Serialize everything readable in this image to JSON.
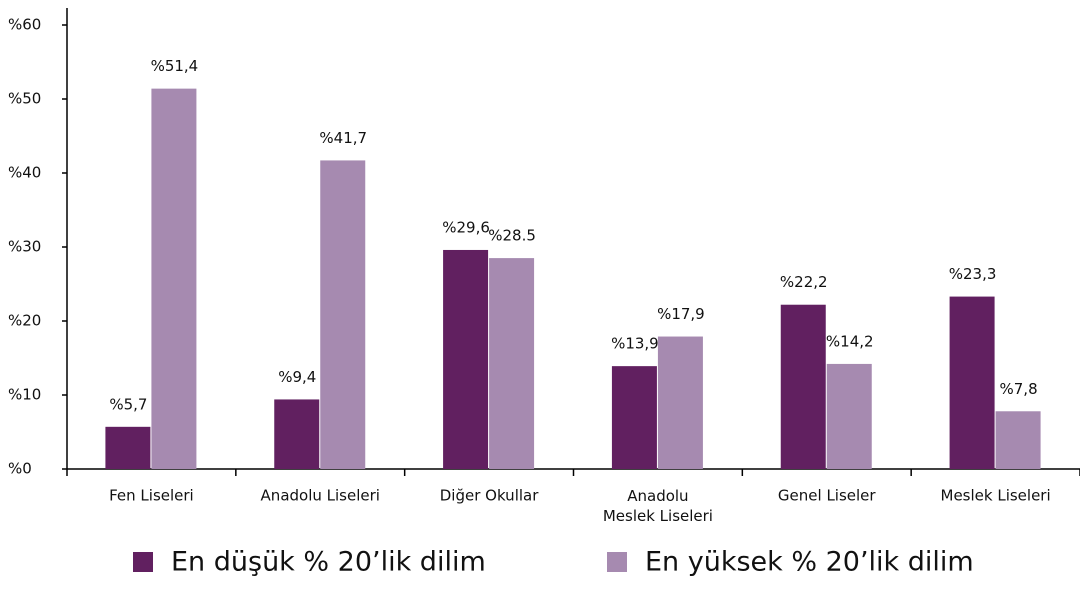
{
  "chart_data": {
    "type": "bar",
    "categories": [
      "Fen Liseleri",
      "Anadolu Liseleri",
      "Diğer Okullar",
      "Anadolu Meslek Liseleri",
      "Genel Liseler",
      "Meslek Liseleri"
    ],
    "series": [
      {
        "name": "En düşük % 20’lik dilim",
        "color": "#612060",
        "values": [
          5.7,
          9.4,
          29.6,
          13.9,
          22.2,
          23.3
        ],
        "value_labels": [
          "%5,7",
          "%9,4",
          "%29,6",
          "%13,9",
          "%22,2",
          "%23,3"
        ]
      },
      {
        "name": "En yüksek % 20’lik dilim",
        "color": "#a68ab0",
        "values": [
          51.4,
          41.7,
          28.5,
          17.9,
          14.2,
          7.8
        ],
        "value_labels": [
          "%51,4",
          "%41,7",
          "%28.5",
          "%17,9",
          "%14,2",
          "%7,8"
        ]
      }
    ],
    "ylim": [
      0,
      60
    ],
    "yticks": [
      {
        "value": 0,
        "label": "%0"
      },
      {
        "value": 10,
        "label": "%10"
      },
      {
        "value": 20,
        "label": "%20"
      },
      {
        "value": 30,
        "label": "%30"
      },
      {
        "value": 40,
        "label": "%40"
      },
      {
        "value": 50,
        "label": "%50"
      },
      {
        "value": 60,
        "label": "%60"
      }
    ]
  }
}
